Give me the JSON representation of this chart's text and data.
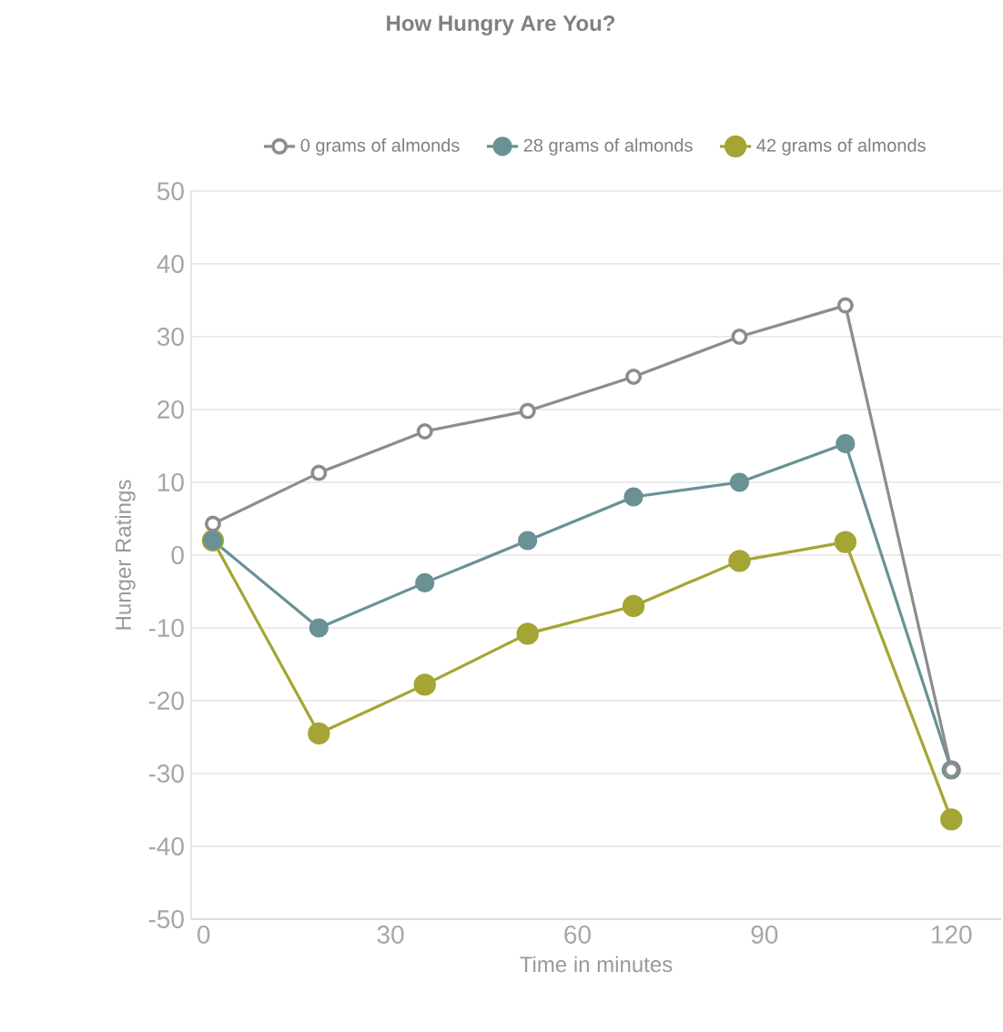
{
  "chart_data": {
    "type": "line",
    "title": "How Hungry Are You?",
    "xlabel": "Time in minutes",
    "ylabel": "Hunger Ratings",
    "x": [
      1.5,
      18.5,
      35.5,
      52,
      69,
      86,
      103,
      120
    ],
    "series": [
      {
        "name": "0 grams of almonds",
        "color": "#8c8c8c",
        "values": [
          4.3,
          11.3,
          17,
          19.8,
          24.5,
          30,
          34.3,
          -29.5
        ]
      },
      {
        "name": "28 grams of almonds",
        "color": "#6a9195",
        "values": [
          2,
          -10,
          -3.8,
          2,
          8,
          10,
          15.3,
          -29.5
        ]
      },
      {
        "name": "42 grams of almonds",
        "color": "#a5a535",
        "values": [
          2,
          -24.5,
          -17.8,
          -10.8,
          -7,
          -0.8,
          1.8,
          -36.3
        ]
      }
    ],
    "xlim": [
      -2,
      128
    ],
    "ylim": [
      -50,
      50
    ],
    "xticks": [
      0,
      30,
      60,
      90,
      120
    ],
    "yticks": [
      -50,
      -40,
      -30,
      -20,
      -10,
      0,
      10,
      20,
      30,
      40,
      50
    ],
    "grid": "y",
    "legend": "top",
    "marker": "circle",
    "line_style": "solid"
  }
}
